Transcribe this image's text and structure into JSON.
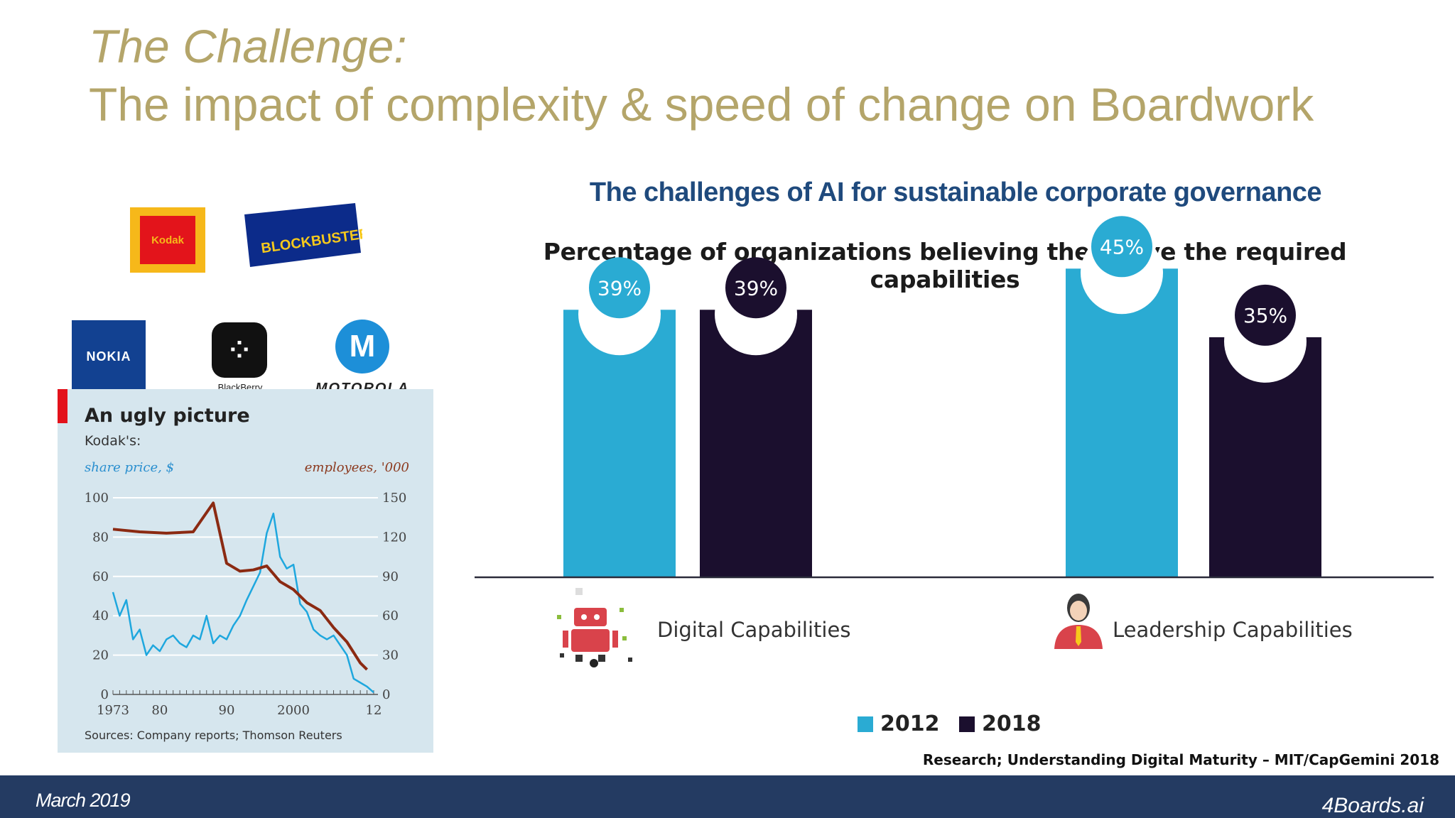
{
  "slide": {
    "title_line1": "The Challenge:",
    "title_line2": "The impact of complexity & speed of change on Boardwork"
  },
  "logos": {
    "kodak": "Kodak",
    "blockbuster": "BLOCKBUSTER",
    "nokia": "NOKIA",
    "blackberry": "BlackBerry",
    "motorola": "MOTOROLA"
  },
  "colors": {
    "title": "#b4a56a",
    "series_2012": "#2aabd3",
    "series_2018": "#1b0f2e",
    "kodak_share": "#1ea7de",
    "kodak_employees": "#8b2a12",
    "footer": "#243b62"
  },
  "chart_data": [
    {
      "type": "line",
      "title": "An ugly picture",
      "subtitle": "Kodak's:",
      "ylabel_left": "share price, $",
      "ylabel_right": "employees, '000",
      "ylim_left": [
        0,
        100
      ],
      "ylim_right": [
        0,
        150
      ],
      "yticks_left": [
        "100",
        "80",
        "60",
        "40",
        "20",
        "0"
      ],
      "yticks_right": [
        "150",
        "120",
        "90",
        "60",
        "30",
        "0"
      ],
      "xlim": [
        1973,
        2012
      ],
      "xtick_labels": [
        "1973",
        "80",
        "90",
        "2000",
        "12"
      ],
      "xtick_positions": [
        1973,
        1980,
        1990,
        2000,
        2012
      ],
      "source": "Sources: Company reports; Thomson Reuters",
      "series": [
        {
          "axis": "left",
          "x": [
            1973,
            1974,
            1975,
            1976,
            1977,
            1978,
            1979,
            1980,
            1981,
            1982,
            1983,
            1984,
            1985,
            1986,
            1987,
            1988,
            1989,
            1990,
            1991,
            1992,
            1993,
            1994,
            1995,
            1996,
            1997,
            1998,
            1999,
            2000,
            2001,
            2002,
            2003,
            2004,
            2005,
            2006,
            2007,
            2008,
            2009,
            2010,
            2011,
            2012
          ],
          "values": [
            52,
            40,
            48,
            28,
            33,
            20,
            25,
            22,
            28,
            30,
            26,
            24,
            30,
            28,
            40,
            26,
            30,
            28,
            35,
            40,
            48,
            55,
            62,
            82,
            92,
            70,
            64,
            66,
            46,
            42,
            33,
            30,
            28,
            30,
            25,
            20,
            8,
            6,
            4,
            1
          ]
        },
        {
          "axis": "right",
          "x": [
            1973,
            1977,
            1981,
            1985,
            1988,
            1990,
            1992,
            1994,
            1996,
            1998,
            2000,
            2002,
            2004,
            2006,
            2008,
            2010,
            2011
          ],
          "values": [
            126,
            124,
            123,
            124,
            146,
            100,
            94,
            95,
            98,
            86,
            80,
            70,
            64,
            51,
            40,
            24,
            19
          ]
        }
      ]
    },
    {
      "type": "bar",
      "title": "The challenges of AI for sustainable corporate governance",
      "subtitle": "Percentage of organizations believing they have the required capabilities",
      "categories": [
        "Digital Capabilities",
        "Leadership Capabilities"
      ],
      "ylim": [
        0,
        50
      ],
      "series": [
        {
          "name": "2012",
          "values": [
            39,
            45
          ],
          "labels": [
            "39%",
            "45%"
          ]
        },
        {
          "name": "2018",
          "values": [
            39,
            35
          ],
          "labels": [
            "39%",
            "35%"
          ]
        }
      ],
      "source": "Research; Understanding Digital Maturity – MIT/CapGemini 2018"
    }
  ],
  "footer": {
    "date": "March 2019",
    "brand": "4Boards.ai"
  }
}
